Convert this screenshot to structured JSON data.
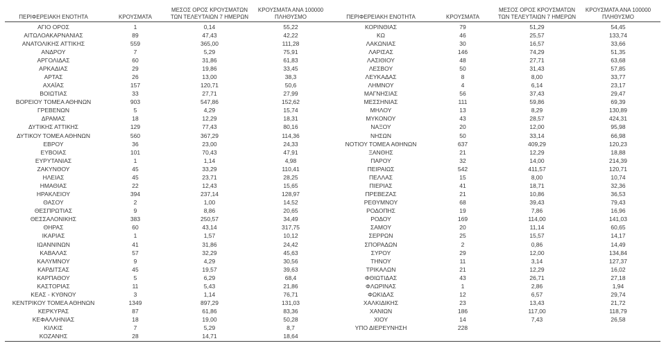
{
  "report": {
    "columns": [
      "ΠΕΡΙΦΕΡΕΙΑΚΗ ΕΝΟΤΗΤΑ",
      "ΚΡΟΥΣΜΑΤΑ",
      "ΜΕΣΟΣ ΟΡΟΣ ΚΡΟΥΣΜΑΤΩΝ\nΤΩΝ ΤΕΛΕΥΤΑΙΩΝ 7 ΗΜΕΡΩΝ",
      "ΚΡΟΥΣΜΑΤΑ ΑΝΑ 100000\nΠΛΗΘΥΣΜΟ"
    ],
    "tables": [
      {
        "rows": [
          [
            "ΑΓΙΟ ΟΡΟΣ",
            "1",
            "0,14",
            "55,22"
          ],
          [
            "ΑΙΤΩΛΟΑΚΑΡΝΑΝΙΑΣ",
            "89",
            "47,43",
            "42,22"
          ],
          [
            "ΑΝΑΤΟΛΙΚΗΣ ΑΤΤΙΚΗΣ",
            "559",
            "365,00",
            "111,28"
          ],
          [
            "ΑΝΔΡΟΥ",
            "7",
            "5,29",
            "75,91"
          ],
          [
            "ΑΡΓΟΛΙΔΑΣ",
            "60",
            "31,86",
            "61,83"
          ],
          [
            "ΑΡΚΑΔΙΑΣ",
            "29",
            "19,86",
            "33,45"
          ],
          [
            "ΑΡΤΑΣ",
            "26",
            "13,00",
            "38,3"
          ],
          [
            "ΑΧΑΪΑΣ",
            "157",
            "120,71",
            "50,6"
          ],
          [
            "ΒΟΙΩΤΙΑΣ",
            "33",
            "27,71",
            "27,99"
          ],
          [
            "ΒΟΡΕΙΟΥ ΤΟΜΕΑ ΑΘΗΝΩΝ",
            "903",
            "547,86",
            "152,62"
          ],
          [
            "ΓΡΕΒΕΝΩΝ",
            "5",
            "4,29",
            "15,74"
          ],
          [
            "ΔΡΑΜΑΣ",
            "18",
            "12,29",
            "18,31"
          ],
          [
            "ΔΥΤΙΚΗΣ ΑΤΤΙΚΗΣ",
            "129",
            "77,43",
            "80,16"
          ],
          [
            "ΔΥΤΙΚΟΥ ΤΟΜΕΑ ΑΘΗΝΩΝ",
            "560",
            "367,29",
            "114,36"
          ],
          [
            "ΕΒΡΟΥ",
            "36",
            "23,00",
            "24,33"
          ],
          [
            "ΕΥΒΟΙΑΣ",
            "101",
            "70,43",
            "47,91"
          ],
          [
            "ΕΥΡΥΤΑΝΙΑΣ",
            "1",
            "1,14",
            "4,98"
          ],
          [
            "ΖΑΚΥΝΘΟΥ",
            "45",
            "33,29",
            "110,41"
          ],
          [
            "ΗΛΕΙΑΣ",
            "45",
            "23,71",
            "28,25"
          ],
          [
            "ΗΜΑΘΙΑΣ",
            "22",
            "12,43",
            "15,65"
          ],
          [
            "ΗΡΑΚΛΕΙΟΥ",
            "394",
            "237,14",
            "128,97"
          ],
          [
            "ΘΑΣΟΥ",
            "2",
            "1,00",
            "14,52"
          ],
          [
            "ΘΕΣΠΡΩΤΙΑΣ",
            "9",
            "8,86",
            "20,65"
          ],
          [
            "ΘΕΣΣΑΛΟΝΙΚΗΣ",
            "383",
            "250,57",
            "34,49"
          ],
          [
            "ΘΗΡΑΣ",
            "60",
            "43,14",
            "317,75"
          ],
          [
            "ΙΚΑΡΙΑΣ",
            "1",
            "1,57",
            "10,12"
          ],
          [
            "ΙΩΑΝΝΙΝΩΝ",
            "41",
            "31,86",
            "24,42"
          ],
          [
            "ΚΑΒΑΛΑΣ",
            "57",
            "32,29",
            "45,63"
          ],
          [
            "ΚΑΛΥΜΝΟΥ",
            "9",
            "4,29",
            "30,56"
          ],
          [
            "ΚΑΡΔΙΤΣΑΣ",
            "45",
            "19,57",
            "39,63"
          ],
          [
            "ΚΑΡΠΑΘΟΥ",
            "5",
            "6,29",
            "68,4"
          ],
          [
            "ΚΑΣΤΟΡΙΑΣ",
            "11",
            "5,43",
            "21,86"
          ],
          [
            "ΚΕΑΣ - ΚΥΘΝΟΥ",
            "3",
            "1,14",
            "76,71"
          ],
          [
            "ΚΕΝΤΡΙΚΟΥ ΤΟΜΕΑ ΑΘΗΝΩΝ",
            "1349",
            "897,29",
            "131,03"
          ],
          [
            "ΚΕΡΚΥΡΑΣ",
            "87",
            "61,86",
            "83,36"
          ],
          [
            "ΚΕΦΑΛΛΗΝΙΑΣ",
            "18",
            "19,00",
            "50,28"
          ],
          [
            "ΚΙΛΚΙΣ",
            "7",
            "5,29",
            "8,7"
          ],
          [
            "ΚΟΖΑΝΗΣ",
            "28",
            "14,71",
            "18,64"
          ]
        ]
      },
      {
        "rows": [
          [
            "ΚΟΡΙΝΘΙΑΣ",
            "79",
            "51,29",
            "54,45"
          ],
          [
            "ΚΩ",
            "46",
            "25,57",
            "133,74"
          ],
          [
            "ΛΑΚΩΝΙΑΣ",
            "30",
            "16,57",
            "33,66"
          ],
          [
            "ΛΑΡΙΣΑΣ",
            "146",
            "74,29",
            "51,35"
          ],
          [
            "ΛΑΣΙΘΙΟΥ",
            "48",
            "27,71",
            "63,68"
          ],
          [
            "ΛΕΣΒΟΥ",
            "50",
            "31,43",
            "57,85"
          ],
          [
            "ΛΕΥΚΑΔΑΣ",
            "8",
            "8,00",
            "33,77"
          ],
          [
            "ΛΗΜΝΟΥ",
            "4",
            "6,14",
            "23,17"
          ],
          [
            "ΜΑΓΝΗΣΙΑΣ",
            "56",
            "37,43",
            "29,47"
          ],
          [
            "ΜΕΣΣΗΝΙΑΣ",
            "111",
            "59,86",
            "69,39"
          ],
          [
            "ΜΗΛΟΥ",
            "13",
            "8,29",
            "130,89"
          ],
          [
            "ΜΥΚΟΝΟΥ",
            "43",
            "28,57",
            "424,31"
          ],
          [
            "ΝΑΞΟΥ",
            "20",
            "12,00",
            "95,98"
          ],
          [
            "ΝΗΣΩΝ",
            "50",
            "33,14",
            "66,98"
          ],
          [
            "ΝΟΤΙΟΥ ΤΟΜΕΑ ΑΘΗΝΩΝ",
            "637",
            "409,29",
            "120,23"
          ],
          [
            "ΞΑΝΘΗΣ",
            "21",
            "12,29",
            "18,88"
          ],
          [
            "ΠΑΡΟΥ",
            "32",
            "14,00",
            "214,39"
          ],
          [
            "ΠΕΙΡΑΙΩΣ",
            "542",
            "411,57",
            "120,71"
          ],
          [
            "ΠΕΛΛΑΣ",
            "15",
            "8,00",
            "10,74"
          ],
          [
            "ΠΙΕΡΙΑΣ",
            "41",
            "18,71",
            "32,36"
          ],
          [
            "ΠΡΕΒΕΖΑΣ",
            "21",
            "10,86",
            "36,53"
          ],
          [
            "ΡΕΘΥΜΝΟΥ",
            "68",
            "39,43",
            "79,43"
          ],
          [
            "ΡΟΔΟΠΗΣ",
            "19",
            "7,86",
            "16,96"
          ],
          [
            "ΡΟΔΟΥ",
            "169",
            "114,00",
            "141,03"
          ],
          [
            "ΣΑΜΟΥ",
            "20",
            "11,14",
            "60,65"
          ],
          [
            "ΣΕΡΡΩΝ",
            "25",
            "15,57",
            "14,17"
          ],
          [
            "ΣΠΟΡΑΔΩΝ",
            "2",
            "0,86",
            "14,49"
          ],
          [
            "ΣΥΡΟΥ",
            "29",
            "12,00",
            "134,84"
          ],
          [
            "ΤΗΝΟΥ",
            "11",
            "3,14",
            "127,37"
          ],
          [
            "ΤΡΙΚΑΛΩΝ",
            "21",
            "12,29",
            "16,02"
          ],
          [
            "ΦΘΙΩΤΙΔΑΣ",
            "43",
            "26,71",
            "27,18"
          ],
          [
            "ΦΛΩΡΙΝΑΣ",
            "1",
            "2,86",
            "1,94"
          ],
          [
            "ΦΩΚΙΔΑΣ",
            "12",
            "6,57",
            "29,74"
          ],
          [
            "ΧΑΛΚΙΔΙΚΗΣ",
            "23",
            "13,43",
            "21,72"
          ],
          [
            "ΧΑΝΙΩΝ",
            "186",
            "117,00",
            "118,79"
          ],
          [
            "ΧΙΟΥ",
            "14",
            "7,43",
            "26,58"
          ],
          [
            "ΥΠΟ ΔΙΕΡΕΥΝΗΣΗ",
            "228",
            "",
            ""
          ]
        ]
      }
    ],
    "colors": {
      "text": "#383838",
      "rule": "#414141",
      "background": "#ffffff"
    }
  }
}
